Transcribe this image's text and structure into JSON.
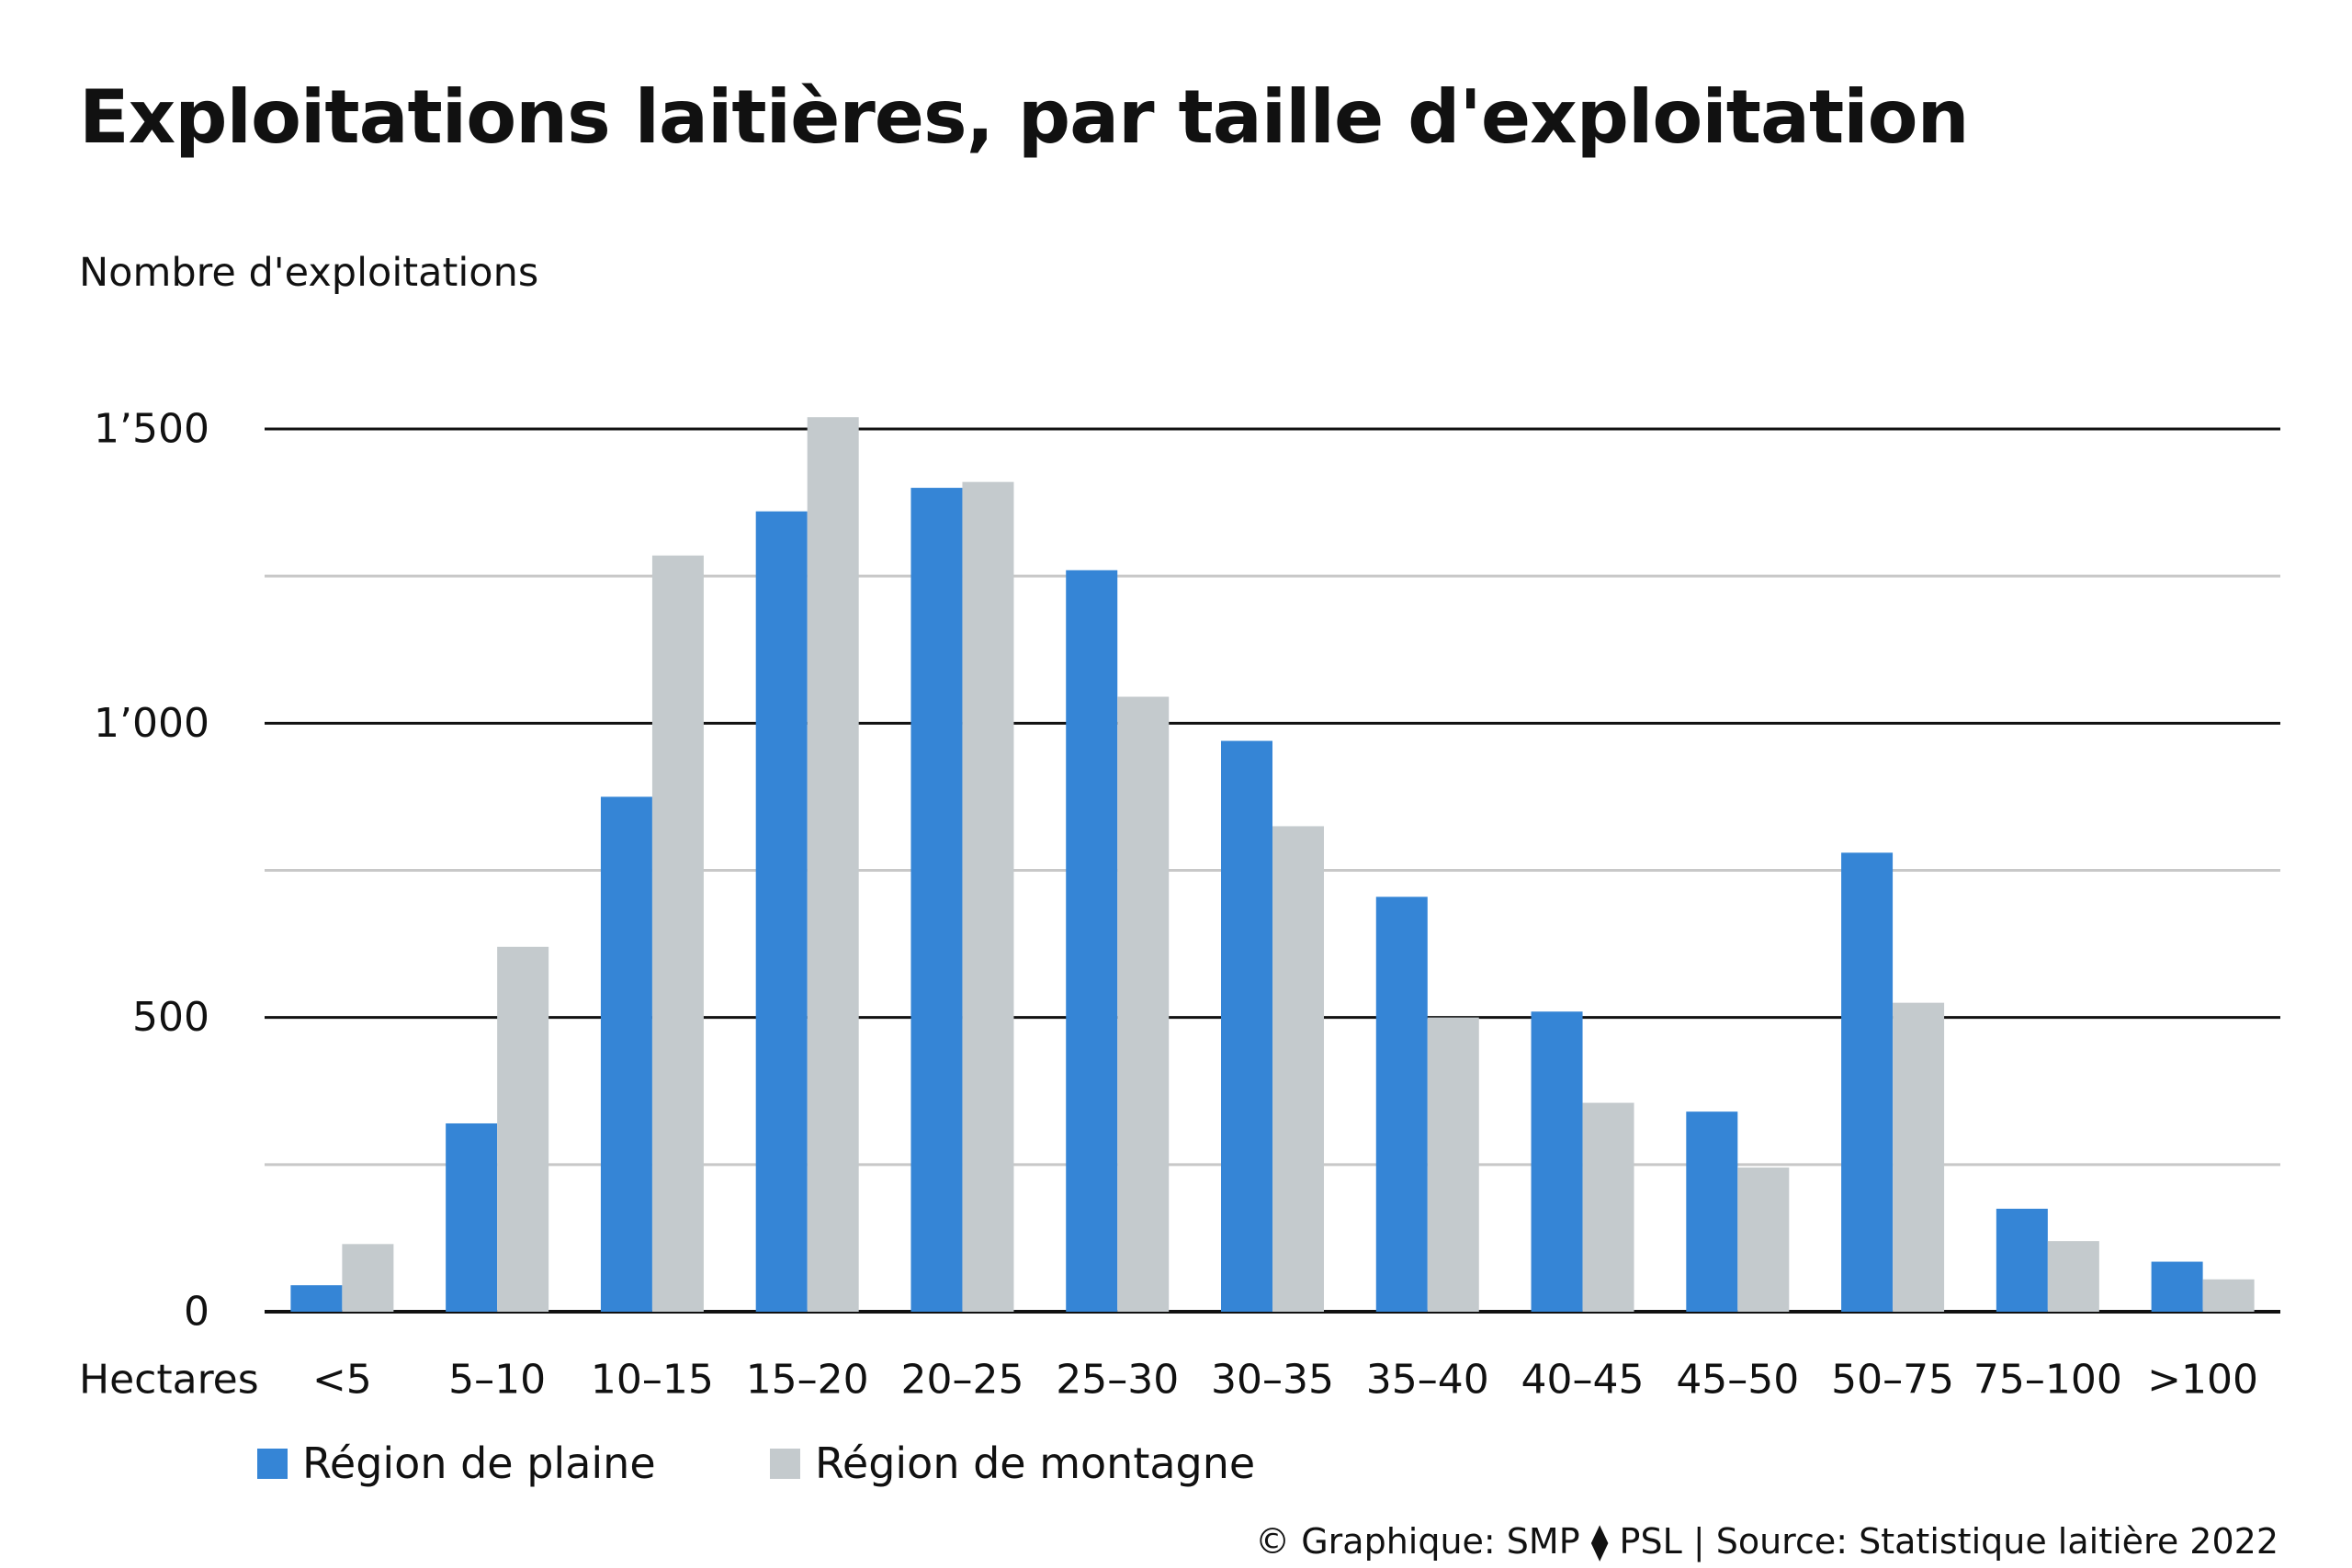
{
  "chart_data": {
    "type": "bar",
    "title": "Exploitations laitières, par taille d'exploitation",
    "ylabel": "Nombre d'exploitations",
    "xlabel": "Hectares",
    "categories": [
      "<5",
      "5–10",
      "10–15",
      "15–20",
      "20–25",
      "25–30",
      "30–35",
      "35–40",
      "40–45",
      "45–50",
      "50–75",
      "75–100",
      ">100"
    ],
    "series": [
      {
        "name": "Région de plaine",
        "color": "#3585d6",
        "values": [
          45,
          320,
          875,
          1360,
          1400,
          1260,
          970,
          705,
          510,
          340,
          780,
          175,
          85
        ]
      },
      {
        "name": "Région de montagne",
        "color": "#c4cacd",
        "values": [
          115,
          620,
          1285,
          1520,
          1410,
          1045,
          825,
          500,
          355,
          245,
          525,
          120,
          55
        ]
      }
    ],
    "ylim": [
      0,
      1500
    ],
    "yticks": [
      {
        "value": 0,
        "label": "0"
      },
      {
        "value": 500,
        "label": "500"
      },
      {
        "value": 1000,
        "label": "1’000"
      },
      {
        "value": 1500,
        "label": "1’500"
      }
    ],
    "minor_gridlines": [
      250,
      750,
      1250
    ],
    "grid": true,
    "legend_position": "bottom-left",
    "source": "© Graphique: SMP ⧫ PSL | Source: Statistique laitière 2022"
  }
}
